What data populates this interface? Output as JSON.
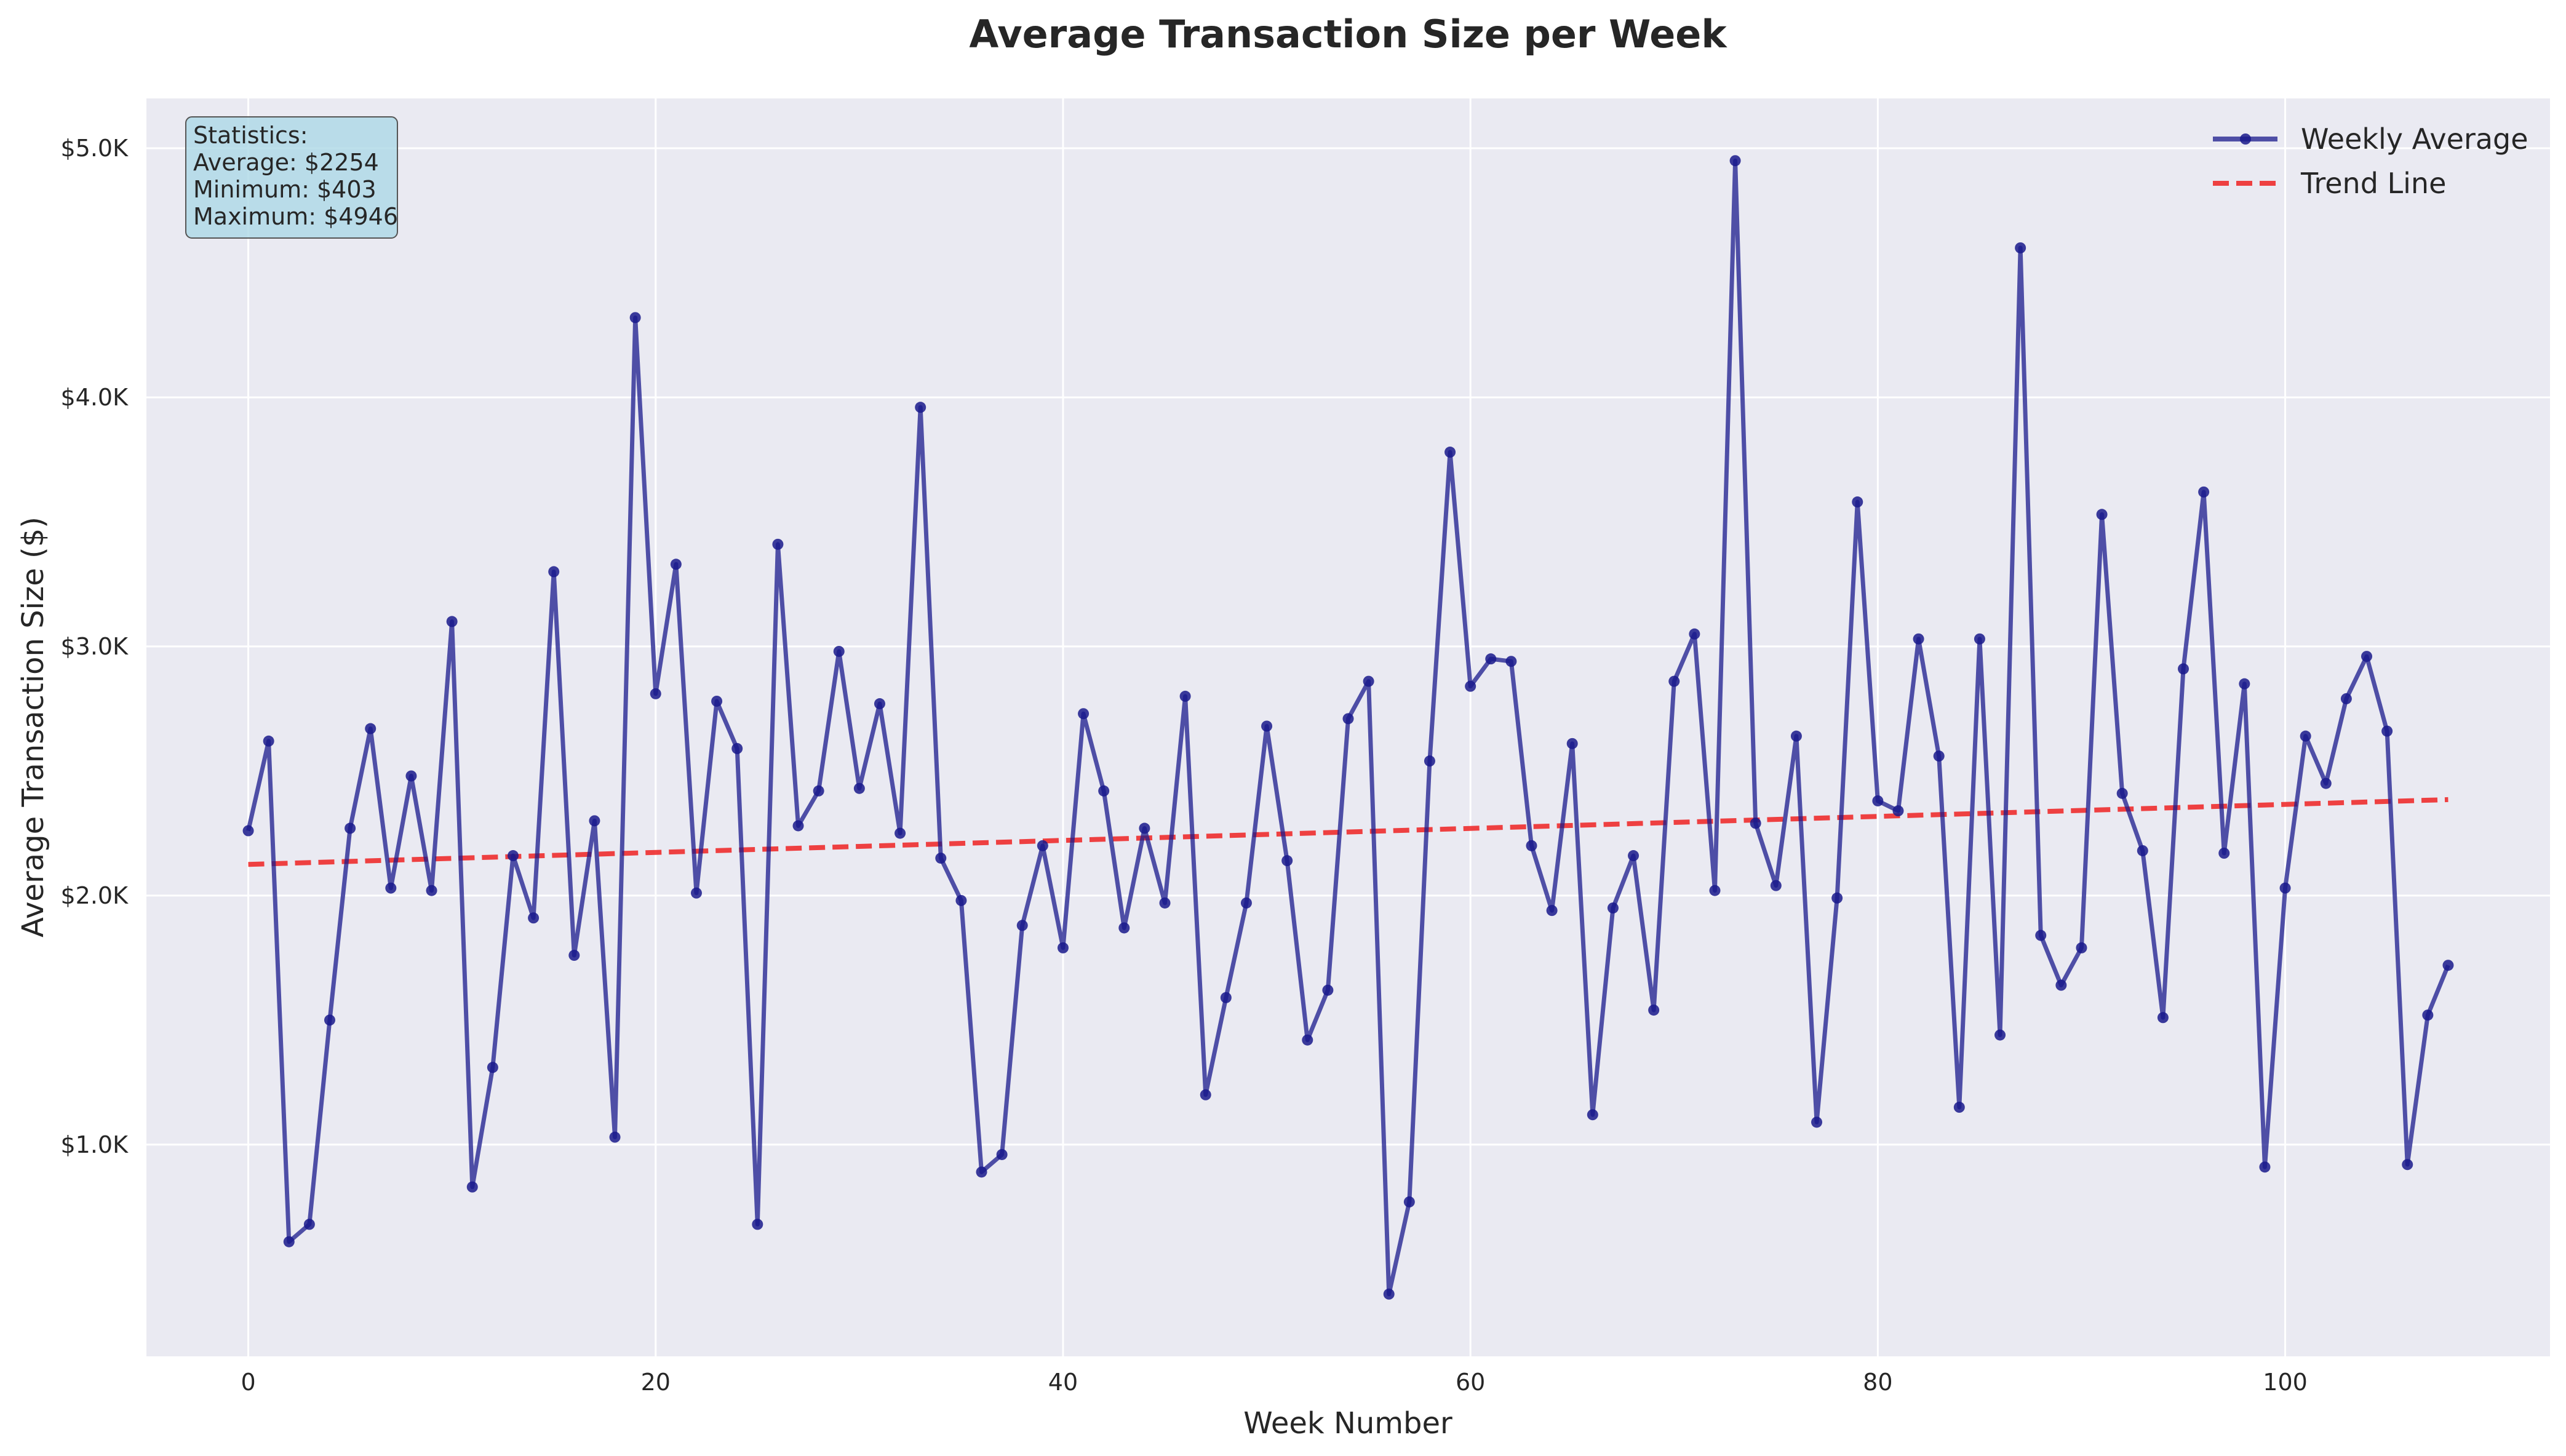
{
  "chart_data": {
    "type": "line",
    "title": "Average Transaction Size per Week",
    "xlabel": "Week Number",
    "ylabel": "Average Transaction Size ($)",
    "xlim": [
      -5,
      113
    ],
    "ylim": [
      0.15,
      5.2
    ],
    "x_ticks": [
      0,
      20,
      40,
      60,
      80,
      100
    ],
    "x_tick_labels": [
      "0",
      "20",
      "40",
      "60",
      "80",
      "100"
    ],
    "y_ticks": [
      1.0,
      2.0,
      3.0,
      4.0,
      5.0
    ],
    "y_tick_labels": [
      "$1.0K",
      "$2.0K",
      "$3.0K",
      "$4.0K",
      "$5.0K"
    ],
    "y_unit": "thousands of dollars",
    "grid": true,
    "legend_position": "top-right",
    "colors": {
      "weekly": "#1a1a8c",
      "trend": "#ee2222",
      "plot_bg": "#eaeaf2",
      "stats_box": "#add8e6"
    },
    "series": [
      {
        "name": "Weekly Average",
        "style": "solid-line-with-markers",
        "x": [
          0,
          1,
          2,
          3,
          4,
          5,
          6,
          7,
          8,
          9,
          10,
          11,
          12,
          13,
          14,
          15,
          16,
          17,
          18,
          19,
          20,
          21,
          22,
          23,
          24,
          25,
          26,
          27,
          28,
          29,
          30,
          31,
          32,
          33,
          34,
          35,
          36,
          37,
          38,
          39,
          40,
          41,
          42,
          43,
          44,
          45,
          46,
          47,
          48,
          49,
          50,
          51,
          52,
          53,
          54,
          55,
          56,
          57,
          58,
          59,
          60,
          61,
          62,
          63,
          64,
          65,
          66,
          67,
          68,
          69,
          70,
          71,
          72,
          73,
          74,
          75,
          76,
          77,
          78,
          79,
          80,
          81,
          82,
          83,
          84,
          85,
          86,
          87,
          88,
          89,
          90,
          91,
          92,
          93,
          94,
          95,
          96,
          97,
          98,
          99,
          100,
          101,
          102,
          103,
          104,
          105,
          106,
          107,
          108
        ],
        "values": [
          2.26,
          2.62,
          0.61,
          0.68,
          1.5,
          2.27,
          2.67,
          2.03,
          2.48,
          2.02,
          3.1,
          0.83,
          1.31,
          2.16,
          1.91,
          3.3,
          1.76,
          2.3,
          1.03,
          4.32,
          2.81,
          3.33,
          2.01,
          2.78,
          2.59,
          0.68,
          3.41,
          2.28,
          2.42,
          2.98,
          2.43,
          2.77,
          2.25,
          3.96,
          2.15,
          1.98,
          0.89,
          0.96,
          1.88,
          2.2,
          1.79,
          2.73,
          2.42,
          1.87,
          2.27,
          1.97,
          2.8,
          1.2,
          1.59,
          1.97,
          2.68,
          2.14,
          1.42,
          1.62,
          2.71,
          2.86,
          0.4,
          0.77,
          2.54,
          3.78,
          2.84,
          2.95,
          2.94,
          2.2,
          1.94,
          2.61,
          1.12,
          1.95,
          2.16,
          1.54,
          2.86,
          3.05,
          2.02,
          4.95,
          2.29,
          2.04,
          2.64,
          1.09,
          1.99,
          3.58,
          2.38,
          2.34,
          3.03,
          2.56,
          1.15,
          3.03,
          1.44,
          4.6,
          1.84,
          1.64,
          1.79,
          3.53,
          2.41,
          2.18,
          1.51,
          2.91,
          3.62,
          2.17,
          2.85,
          0.91,
          2.03,
          2.64,
          2.45,
          2.79,
          2.96,
          2.66,
          0.92,
          1.52,
          1.72
        ]
      },
      {
        "name": "Trend Line",
        "style": "dashed-line",
        "x": [
          0,
          108
        ],
        "values": [
          2.125,
          2.385
        ]
      }
    ],
    "stats_box": {
      "lines": [
        "Statistics:",
        "Average: $2254",
        "Minimum: $403",
        "Maximum: $4946"
      ]
    }
  }
}
